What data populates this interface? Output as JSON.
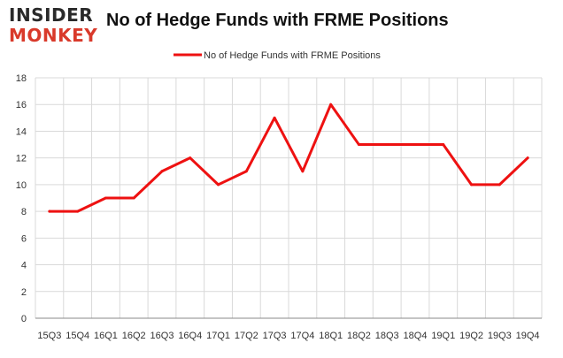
{
  "logo": {
    "line1": "INSIDER",
    "line2": "MONKEY"
  },
  "chart_data": {
    "type": "line",
    "title": "No of Hedge Funds with FRME Positions",
    "xlabel": "",
    "ylabel": "",
    "categories": [
      "15Q3",
      "15Q4",
      "16Q1",
      "16Q2",
      "16Q3",
      "16Q4",
      "17Q1",
      "17Q2",
      "17Q3",
      "17Q4",
      "18Q1",
      "18Q2",
      "18Q3",
      "18Q4",
      "19Q1",
      "19Q2",
      "19Q3",
      "19Q4"
    ],
    "series": [
      {
        "name": "No of Hedge Funds with FRME Positions",
        "values": [
          8,
          8,
          9,
          9,
          11,
          12,
          10,
          11,
          15,
          11,
          16,
          13,
          13,
          13,
          13,
          10,
          10,
          12
        ],
        "color": "#ee1111"
      }
    ],
    "ylim": [
      0,
      18
    ],
    "yticks": [
      0,
      2,
      4,
      6,
      8,
      10,
      12,
      14,
      16,
      18
    ],
    "grid": true,
    "legend": "top-center"
  }
}
